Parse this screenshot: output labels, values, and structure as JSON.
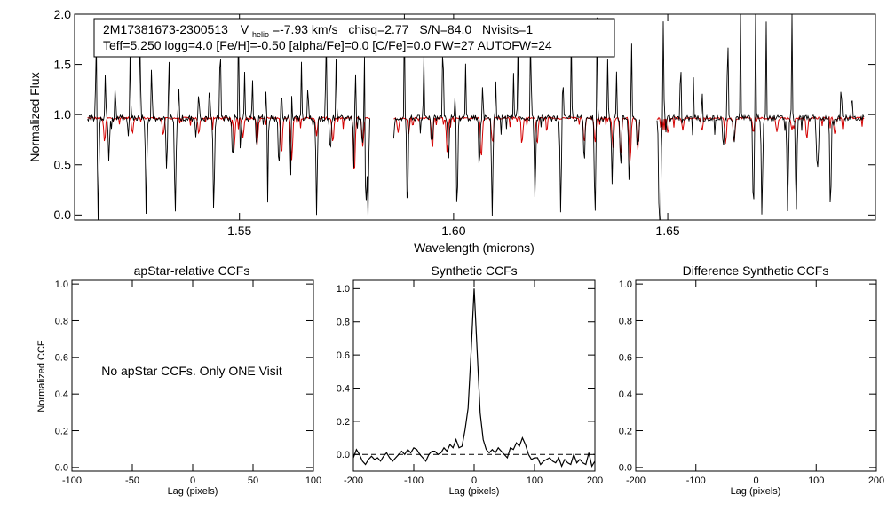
{
  "chart_data": [
    {
      "id": "spectrum",
      "type": "line",
      "header": {
        "star_id": "2M17381673-2300513",
        "vhelio_label": "V",
        "vhelio_sub": "helio",
        "vhelio_value": "=-7.93 km/s",
        "chisq": "chisq=2.77",
        "snr": "S/N=84.0",
        "nvisits": "Nvisits=1",
        "line2": "Teff=5,250 logg=4.0 [Fe/H]=-0.50 [alpha/Fe]=0.0 [C/Fe]=0.0 FW=27 AUTOFW=24"
      },
      "xlabel": "Wavelength (microns)",
      "ylabel": "Normalized Flux",
      "xlim": [
        1.5115,
        1.6985
      ],
      "ylim": [
        -0.05,
        2.0
      ],
      "xticks": [
        1.55,
        1.6,
        1.65
      ],
      "xtick_labels": [
        "1.55",
        "1.60",
        "1.65"
      ],
      "yticks": [
        0.0,
        0.5,
        1.0,
        1.5,
        2.0
      ],
      "ytick_labels": [
        "0.0",
        "0.5",
        "1.0",
        "1.5",
        "2.0"
      ],
      "chip_ranges": [
        [
          1.5145,
          1.5805
        ],
        [
          1.586,
          1.6435
        ],
        [
          1.6475,
          1.696
        ]
      ],
      "continuum": 0.965,
      "observed_color": "#000000",
      "model_color": "#d40000",
      "series": [
        {
          "name": "observed",
          "color": "#000000",
          "absorption_lines": [
            [
              1.517,
              0.0
            ],
            [
              1.5195,
              0.55
            ],
            [
              1.524,
              0.8
            ],
            [
              1.5282,
              0.02
            ],
            [
              1.533,
              0.45
            ],
            [
              1.535,
              0.0
            ],
            [
              1.5398,
              0.78
            ],
            [
              1.544,
              0.02
            ],
            [
              1.5484,
              0.52
            ],
            [
              1.5502,
              0.68
            ],
            [
              1.554,
              0.65
            ],
            [
              1.5565,
              0.0
            ],
            [
              1.5592,
              0.45
            ],
            [
              1.562,
              0.4
            ],
            [
              1.568,
              0.0
            ],
            [
              1.5712,
              0.6
            ],
            [
              1.5768,
              0.38
            ],
            [
              1.5787,
              0.7
            ],
            [
              1.5795,
              0.0
            ],
            [
              1.58,
              0.0
            ],
            [
              1.586,
              0.75
            ],
            [
              1.5892,
              0.0
            ],
            [
              1.595,
              0.68
            ],
            [
              1.5988,
              0.55
            ],
            [
              1.6008,
              0.0
            ],
            [
              1.606,
              0.45
            ],
            [
              1.609,
              0.0
            ],
            [
              1.619,
              0.15
            ],
            [
              1.625,
              0.0
            ],
            [
              1.6305,
              0.5
            ],
            [
              1.633,
              0.0
            ],
            [
              1.637,
              0.38
            ],
            [
              1.639,
              0.45
            ],
            [
              1.641,
              0.3
            ],
            [
              1.643,
              0.35
            ],
            [
              1.648,
              0.0
            ],
            [
              1.6483,
              0.0
            ],
            [
              1.653,
              0.78
            ],
            [
              1.663,
              0.65
            ],
            [
              1.6655,
              0.7
            ],
            [
              1.67,
              0.0
            ],
            [
              1.672,
              0.0
            ],
            [
              1.678,
              0.0
            ],
            [
              1.68,
              0.0
            ],
            [
              1.685,
              0.0
            ],
            [
              1.688,
              0.0
            ]
          ],
          "emission_spikes": [
            [
              1.5165,
              2.0
            ],
            [
              1.5187,
              1.38
            ],
            [
              1.521,
              1.3
            ],
            [
              1.5245,
              1.65
            ],
            [
              1.5268,
              2.0
            ],
            [
              1.5295,
              1.52
            ],
            [
              1.5335,
              1.7
            ],
            [
              1.5358,
              1.25
            ],
            [
              1.5405,
              1.2
            ],
            [
              1.543,
              1.35
            ],
            [
              1.5455,
              2.0
            ],
            [
              1.5498,
              2.0
            ],
            [
              1.5512,
              1.42
            ],
            [
              1.553,
              1.36
            ],
            [
              1.5563,
              2.0
            ],
            [
              1.5598,
              1.3
            ],
            [
              1.5622,
              1.35
            ],
            [
              1.5645,
              1.45
            ],
            [
              1.566,
              1.3
            ],
            [
              1.5702,
              2.0
            ],
            [
              1.5726,
              1.55
            ],
            [
              1.577,
              2.0
            ],
            [
              1.5792,
              1.6
            ],
            [
              1.5885,
              2.0
            ],
            [
              1.593,
              1.6
            ],
            [
              1.5975,
              2.0
            ],
            [
              1.6004,
              1.3
            ],
            [
              1.6028,
              1.4
            ],
            [
              1.6068,
              1.26
            ],
            [
              1.6098,
              1.28
            ],
            [
              1.614,
              1.3
            ],
            [
              1.615,
              1.62
            ],
            [
              1.618,
              2.0
            ],
            [
              1.6255,
              1.45
            ],
            [
              1.6275,
              1.75
            ],
            [
              1.6335,
              2.0
            ],
            [
              1.636,
              1.5
            ],
            [
              1.638,
              1.4
            ],
            [
              1.6415,
              1.85
            ],
            [
              1.643,
              1.25
            ],
            [
              1.649,
              2.0
            ],
            [
              1.653,
              2.0
            ],
            [
              1.656,
              1.25
            ],
            [
              1.658,
              1.22
            ],
            [
              1.664,
              2.0
            ],
            [
              1.667,
              1.92
            ],
            [
              1.6705,
              2.0
            ],
            [
              1.673,
              1.8
            ],
            [
              1.679,
              2.0
            ],
            [
              1.685,
              1.38
            ],
            [
              1.6905,
              1.3
            ],
            [
              1.693,
              1.2
            ]
          ]
        },
        {
          "name": "model",
          "color": "#d40000",
          "absorption_lines": [
            [
              1.5185,
              0.72
            ],
            [
              1.525,
              0.82
            ],
            [
              1.5322,
              0.78
            ],
            [
              1.5405,
              0.8
            ],
            [
              1.5488,
              0.73
            ],
            [
              1.5508,
              0.76
            ],
            [
              1.5542,
              0.78
            ],
            [
              1.5598,
              0.6
            ],
            [
              1.5622,
              0.55
            ],
            [
              1.568,
              0.78
            ],
            [
              1.5718,
              0.72
            ],
            [
              1.5768,
              0.4
            ],
            [
              1.5788,
              0.68
            ],
            [
              1.587,
              0.82
            ],
            [
              1.5895,
              0.8
            ],
            [
              1.595,
              0.7
            ],
            [
              1.5985,
              0.62
            ],
            [
              1.6065,
              0.6
            ],
            [
              1.609,
              0.75
            ],
            [
              1.616,
              0.74
            ],
            [
              1.6195,
              0.7
            ],
            [
              1.6305,
              0.72
            ],
            [
              1.633,
              0.72
            ],
            [
              1.6372,
              0.66
            ],
            [
              1.639,
              0.6
            ],
            [
              1.6412,
              0.5
            ],
            [
              1.643,
              0.65
            ],
            [
              1.65,
              0.82
            ],
            [
              1.6535,
              0.85
            ],
            [
              1.658,
              0.84
            ],
            [
              1.6635,
              0.7
            ],
            [
              1.6655,
              0.72
            ],
            [
              1.67,
              0.82
            ],
            [
              1.6755,
              0.82
            ],
            [
              1.679,
              0.84
            ],
            [
              1.6825,
              0.75
            ],
            [
              1.689,
              0.8
            ]
          ]
        }
      ]
    },
    {
      "id": "apstar-ccf",
      "type": "line",
      "title": "apStar-relative CCFs",
      "xlabel": "Lag (pixels)",
      "ylabel": "Normalized CCF",
      "xlim": [
        -100,
        100
      ],
      "ylim": [
        -0.02,
        1.02
      ],
      "xticks": [
        -100,
        -50,
        0,
        50,
        100
      ],
      "xtick_labels": [
        "-100",
        "-50",
        "0",
        "50",
        "100"
      ],
      "yticks": [
        0.0,
        0.2,
        0.4,
        0.6,
        0.8,
        1.0
      ],
      "ytick_labels": [
        "0.0",
        "0.2",
        "0.4",
        "0.6",
        "0.8",
        "1.0"
      ],
      "message": "No apStar CCFs.  Only ONE Visit",
      "series": []
    },
    {
      "id": "synthetic-ccf",
      "type": "line",
      "title": "Synthetic CCFs",
      "xlabel": "Lag (pixels)",
      "xlim": [
        -200,
        200
      ],
      "ylim": [
        -0.1,
        1.05
      ],
      "xticks": [
        -200,
        -100,
        0,
        100,
        200
      ],
      "xtick_labels": [
        "-200",
        "-100",
        "0",
        "100",
        "200"
      ],
      "yticks": [
        0.0,
        0.2,
        0.4,
        0.6,
        0.8,
        1.0
      ],
      "ytick_labels": [
        "0.0",
        "0.2",
        "0.4",
        "0.6",
        "0.8",
        "1.0"
      ],
      "reference_line": 0.0,
      "series": [
        {
          "name": "ccf",
          "x": [
            -200,
            -195,
            -190,
            -185,
            -180,
            -175,
            -170,
            -165,
            -160,
            -155,
            -150,
            -145,
            -140,
            -135,
            -130,
            -125,
            -120,
            -115,
            -110,
            -105,
            -100,
            -95,
            -90,
            -85,
            -80,
            -75,
            -70,
            -65,
            -60,
            -55,
            -50,
            -45,
            -40,
            -35,
            -30,
            -25,
            -20,
            -15,
            -10,
            -5,
            0,
            5,
            10,
            15,
            20,
            25,
            30,
            35,
            40,
            45,
            50,
            55,
            60,
            65,
            70,
            75,
            80,
            85,
            90,
            95,
            100,
            105,
            110,
            115,
            120,
            125,
            130,
            135,
            140,
            145,
            150,
            155,
            160,
            165,
            170,
            175,
            180,
            185,
            190,
            195,
            200
          ],
          "y": [
            -0.02,
            0.03,
            0.0,
            -0.04,
            -0.06,
            -0.03,
            -0.01,
            -0.03,
            -0.02,
            -0.04,
            -0.01,
            0.01,
            -0.02,
            -0.04,
            -0.02,
            0.0,
            0.02,
            0.0,
            0.03,
            0.01,
            0.04,
            0.03,
            0.0,
            -0.02,
            -0.04,
            0.0,
            0.02,
            0.02,
            0.0,
            0.01,
            0.04,
            0.02,
            0.06,
            0.04,
            0.09,
            0.04,
            0.05,
            0.15,
            0.28,
            0.62,
            1.0,
            0.62,
            0.25,
            0.09,
            0.03,
            0.01,
            0.03,
            0.01,
            0.04,
            0.02,
            0.0,
            -0.02,
            0.04,
            0.03,
            0.07,
            0.05,
            0.1,
            0.06,
            0.0,
            -0.03,
            -0.02,
            -0.02,
            -0.06,
            -0.04,
            -0.03,
            -0.02,
            -0.04,
            -0.05,
            -0.02,
            -0.07,
            -0.03,
            -0.05,
            -0.06,
            0.0,
            -0.05,
            -0.03,
            -0.05,
            -0.06,
            0.01,
            -0.07,
            -0.04
          ]
        }
      ]
    },
    {
      "id": "difference-ccf",
      "type": "line",
      "title": "Difference Synthetic CCFs",
      "xlabel": "Lag (pixels)",
      "xlim": [
        -200,
        200
      ],
      "ylim": [
        -0.02,
        1.02
      ],
      "xticks": [
        -200,
        -100,
        0,
        100,
        200
      ],
      "xtick_labels": [
        "-200",
        "-100",
        "0",
        "100",
        "200"
      ],
      "yticks": [
        0.0,
        0.2,
        0.4,
        0.6,
        0.8,
        1.0
      ],
      "ytick_labels": [
        "0.0",
        "0.2",
        "0.4",
        "0.6",
        "0.8",
        "1.0"
      ],
      "series": []
    }
  ]
}
